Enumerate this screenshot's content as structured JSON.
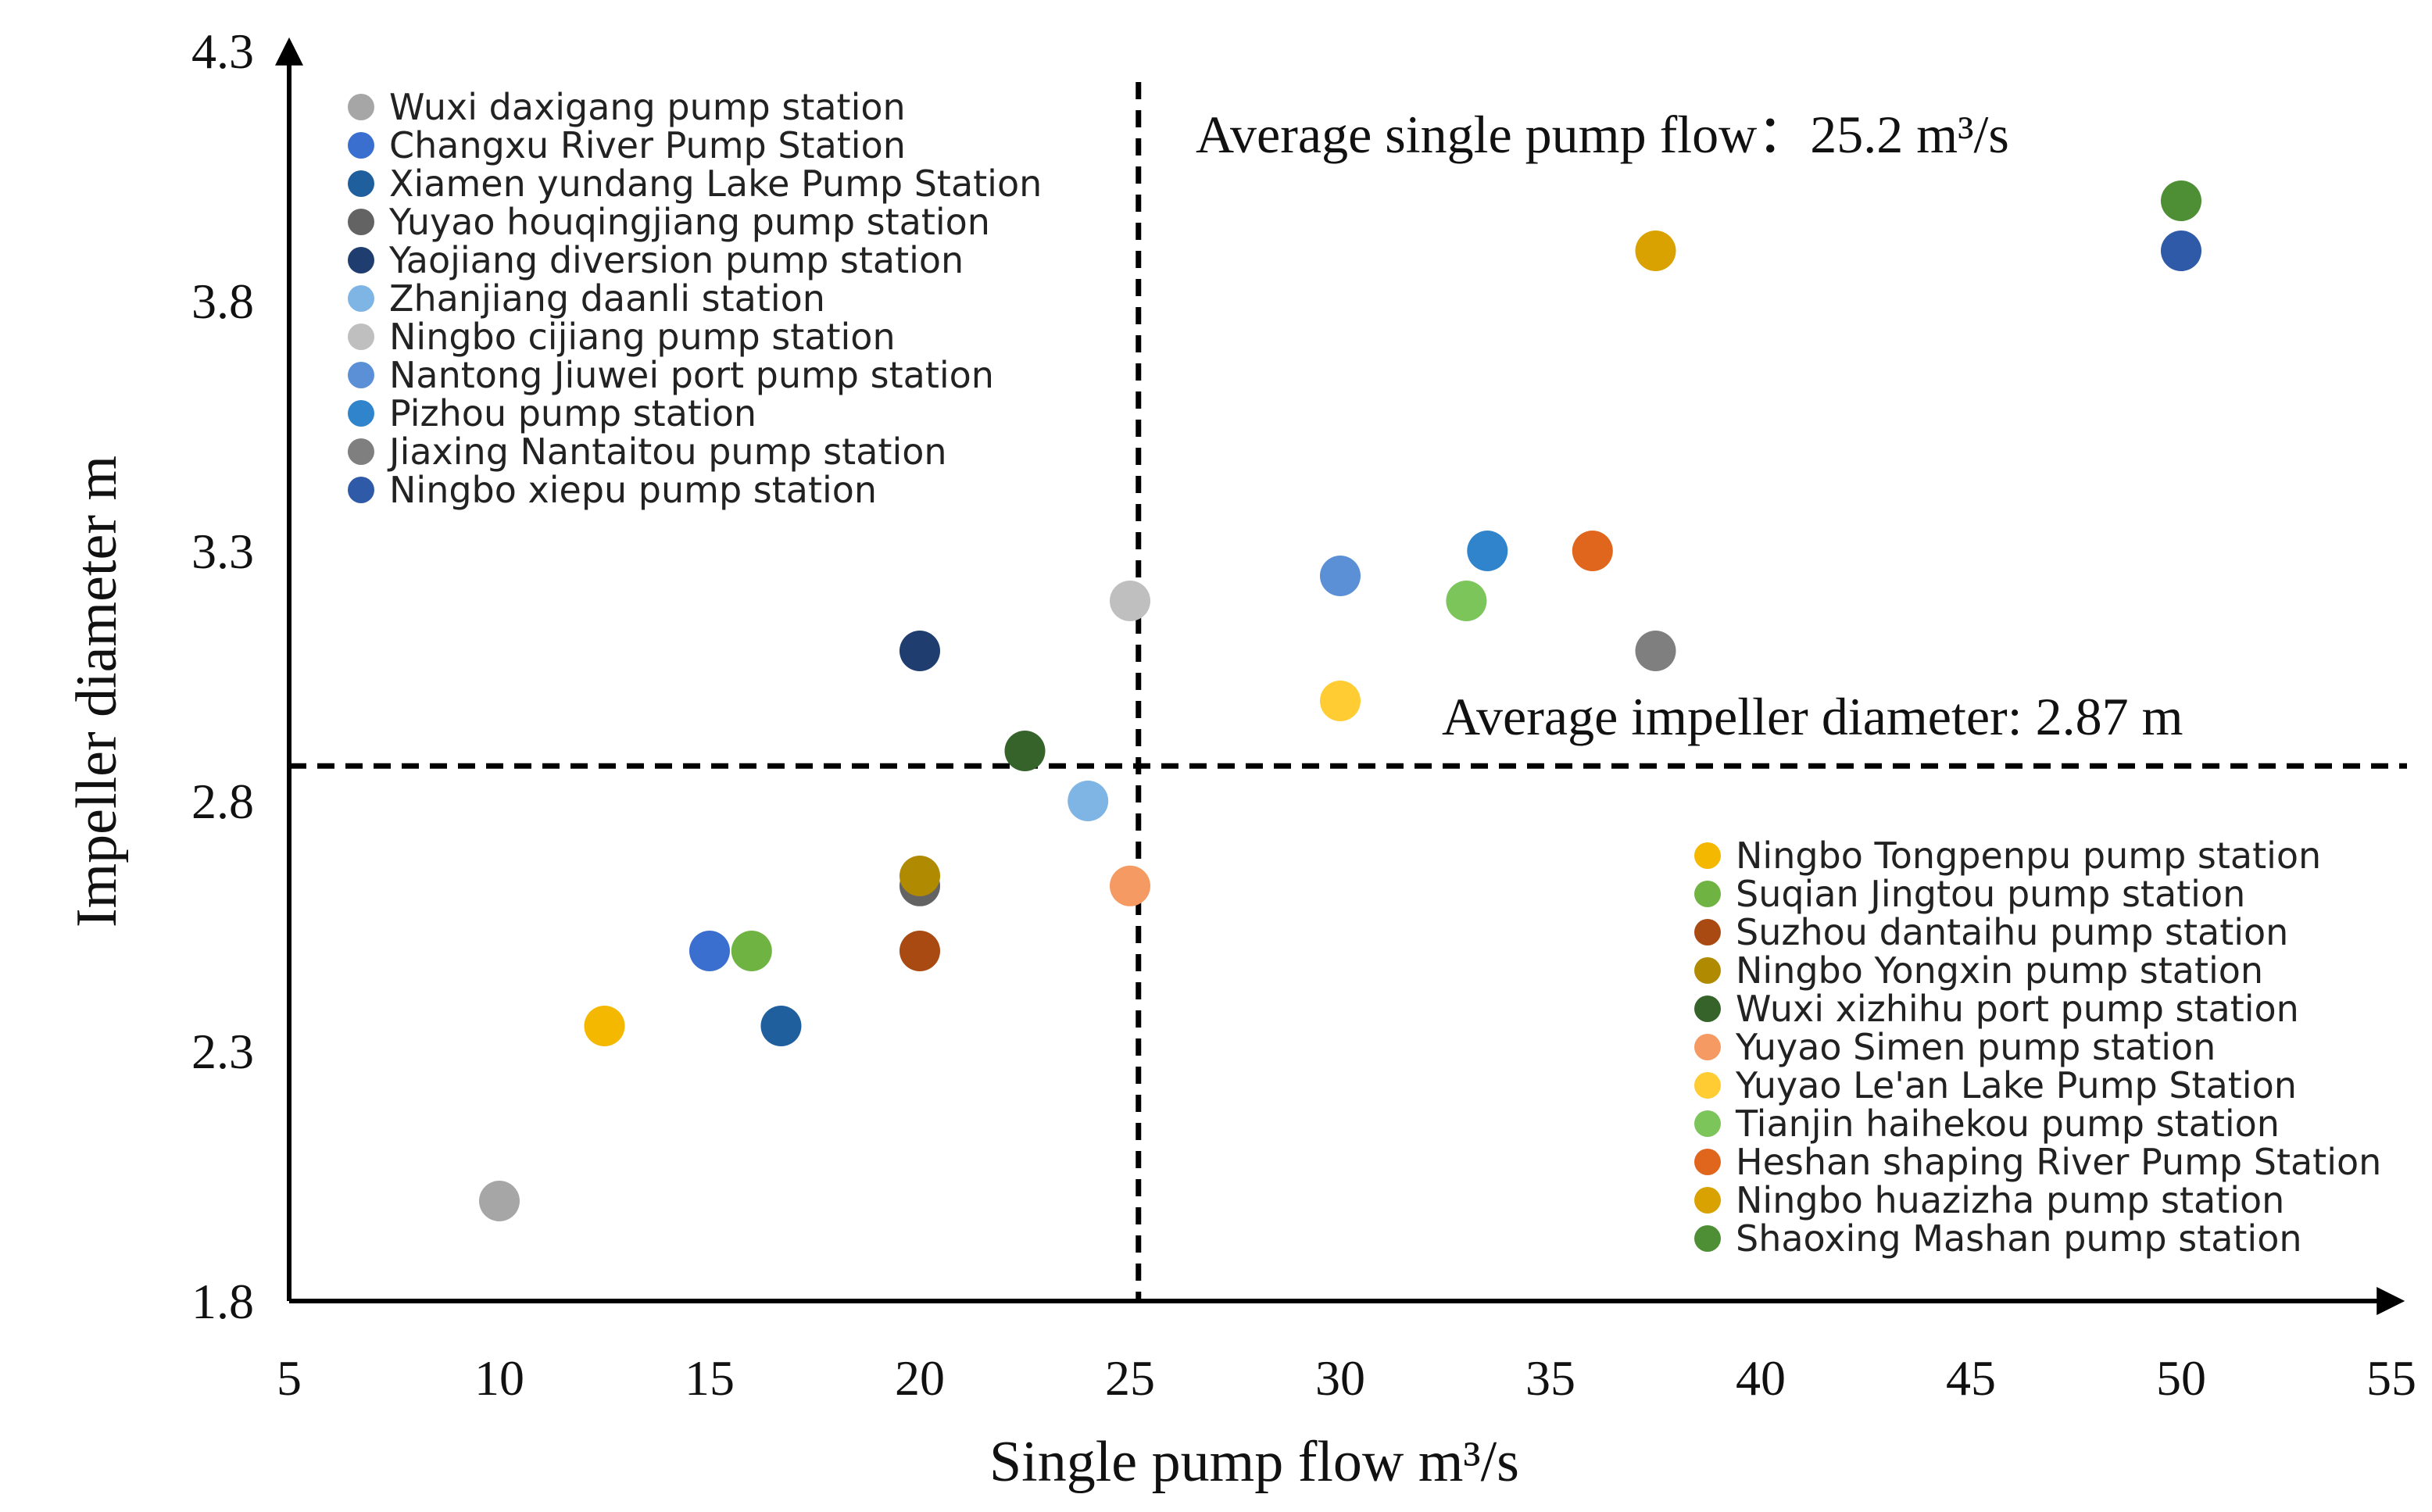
{
  "chart_data": {
    "type": "scatter",
    "title": "",
    "xlabel": "Single pump flow m³/s",
    "ylabel": "Impeller diameter m",
    "xlim": [
      5,
      55
    ],
    "ylim": [
      1.8,
      4.3
    ],
    "xticks": [
      5,
      10,
      15,
      20,
      25,
      30,
      35,
      40,
      45,
      50,
      55
    ],
    "yticks": [
      1.8,
      2.3,
      2.8,
      3.3,
      3.8,
      4.3
    ],
    "xtick_labels": [
      "5",
      "10",
      "15",
      "20",
      "25",
      "30",
      "35",
      "40",
      "45",
      "50",
      "55"
    ],
    "ytick_labels": [
      "1.8",
      "2.3",
      "2.8",
      "3.3",
      "3.8",
      "4.3"
    ],
    "grid": false,
    "reference_lines": [
      {
        "orientation": "vertical",
        "value": 25.2,
        "label": "Average single pump flow：25.2 m³/s"
      },
      {
        "orientation": "horizontal",
        "value": 2.87,
        "label": "Average impeller diameter: 2.87 m"
      }
    ],
    "legend_left": [
      "Wuxi daxigang pump station",
      "Changxu River Pump Station",
      "Xiamen yundang Lake Pump Station",
      "Yuyao houqingjiang pump station",
      "Yaojiang diversion pump station",
      "Zhanjiang daanli station",
      "Ningbo cijiang pump station",
      "Nantong Jiuwei port pump station",
      "Pizhou pump station",
      "Jiaxing Nantaitou pump station",
      "Ningbo xiepu pump station"
    ],
    "legend_right": [
      "Ningbo Tongpenpu pump station",
      "Suqian Jingtou pump station",
      "Suzhou dantaihu pump station",
      "Ningbo Yongxin pump station",
      "Wuxi xizhihu port pump station",
      "Yuyao Simen pump station",
      "Yuyao Le'an Lake Pump Station",
      "Tianjin haihekou pump station",
      "Heshan shaping River Pump Station",
      "Ningbo huazizha pump station",
      "Shaoxing Mashan pump station"
    ],
    "series": [
      {
        "name": "Wuxi daxigang pump station",
        "color": "#a6a6a6",
        "x": 10,
        "y": 2.0
      },
      {
        "name": "Changxu River Pump Station",
        "color": "#3a6fd0",
        "x": 15,
        "y": 2.5
      },
      {
        "name": "Xiamen yundang Lake Pump Station",
        "color": "#1f5f9e",
        "x": 16.7,
        "y": 2.35
      },
      {
        "name": "Yuyao houqingjiang pump station",
        "color": "#636363",
        "x": 20,
        "y": 2.63
      },
      {
        "name": "Yaojiang diversion pump station",
        "color": "#1f3d6e",
        "x": 20,
        "y": 3.1
      },
      {
        "name": "Zhanjiang daanli station",
        "color": "#7fb5e5",
        "x": 24,
        "y": 2.8
      },
      {
        "name": "Ningbo cijiang pump station",
        "color": "#bfbfbf",
        "x": 25,
        "y": 3.2
      },
      {
        "name": "Nantong Jiuwei port pump station",
        "color": "#5b8fd6",
        "x": 30,
        "y": 3.25
      },
      {
        "name": "Pizhou pump station",
        "color": "#2f84cc",
        "x": 33.5,
        "y": 3.3
      },
      {
        "name": "Jiaxing Nantaitou pump station",
        "color": "#7f7f7f",
        "x": 37.5,
        "y": 3.1
      },
      {
        "name": "Ningbo xiepu pump station",
        "color": "#2e5aa8",
        "x": 50,
        "y": 3.9
      },
      {
        "name": "Ningbo Tongpenpu pump station",
        "color": "#f5b800",
        "x": 12.5,
        "y": 2.35
      },
      {
        "name": "Suqian Jingtou pump station",
        "color": "#6fb443",
        "x": 16,
        "y": 2.5
      },
      {
        "name": "Suzhou dantaihu pump station",
        "color": "#a94a12",
        "x": 20,
        "y": 2.5
      },
      {
        "name": "Ningbo Yongxin pump station",
        "color": "#b08a00",
        "x": 20,
        "y": 2.65
      },
      {
        "name": "Wuxi xizhihu port pump station",
        "color": "#35632a",
        "x": 22.5,
        "y": 2.9
      },
      {
        "name": "Yuyao Simen pump station",
        "color": "#f59a63",
        "x": 25,
        "y": 2.63
      },
      {
        "name": "Yuyao Le'an Lake Pump Station",
        "color": "#ffcc33",
        "x": 30,
        "y": 3.0
      },
      {
        "name": "Tianjin haihekou pump station",
        "color": "#7cc55b",
        "x": 33,
        "y": 3.2
      },
      {
        "name": "Heshan shaping River Pump Station",
        "color": "#e0661e",
        "x": 36,
        "y": 3.3
      },
      {
        "name": "Ningbo huazizha pump station",
        "color": "#d9a200",
        "x": 37.5,
        "y": 3.9
      },
      {
        "name": "Shaoxing Mashan pump station",
        "color": "#4e8f35",
        "x": 50,
        "y": 4.0
      }
    ]
  }
}
